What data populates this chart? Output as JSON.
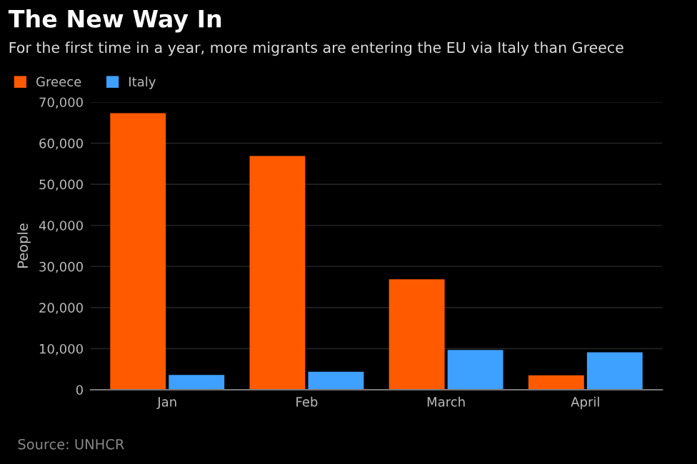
{
  "chart_data": {
    "type": "bar",
    "title": "The New Way In",
    "subtitle": "For the first time in a year, more migrants are entering the EU via Italy than Greece",
    "ylabel": "People",
    "categories": [
      "Jan",
      "Feb",
      "March",
      "April"
    ],
    "series": [
      {
        "name": "Greece",
        "color": "#ff5a00",
        "values": [
          67300,
          56900,
          26900,
          3500
        ]
      },
      {
        "name": "Italy",
        "color": "#3ea0ff",
        "values": [
          3600,
          4400,
          9700,
          9100
        ]
      }
    ],
    "ylim": [
      0,
      70000
    ],
    "yticks": [
      {
        "value": 0,
        "label": "0"
      },
      {
        "value": 10000,
        "label": "10,000"
      },
      {
        "value": 20000,
        "label": "20,000"
      },
      {
        "value": 30000,
        "label": "30,000"
      },
      {
        "value": 40000,
        "label": "40,000"
      },
      {
        "value": 50000,
        "label": "50,000"
      },
      {
        "value": 60000,
        "label": "60,000"
      },
      {
        "value": 70000,
        "label": "70,000"
      }
    ],
    "grid": "y",
    "legend": "top left",
    "annotations": [
      "Source: UNHCR"
    ]
  }
}
